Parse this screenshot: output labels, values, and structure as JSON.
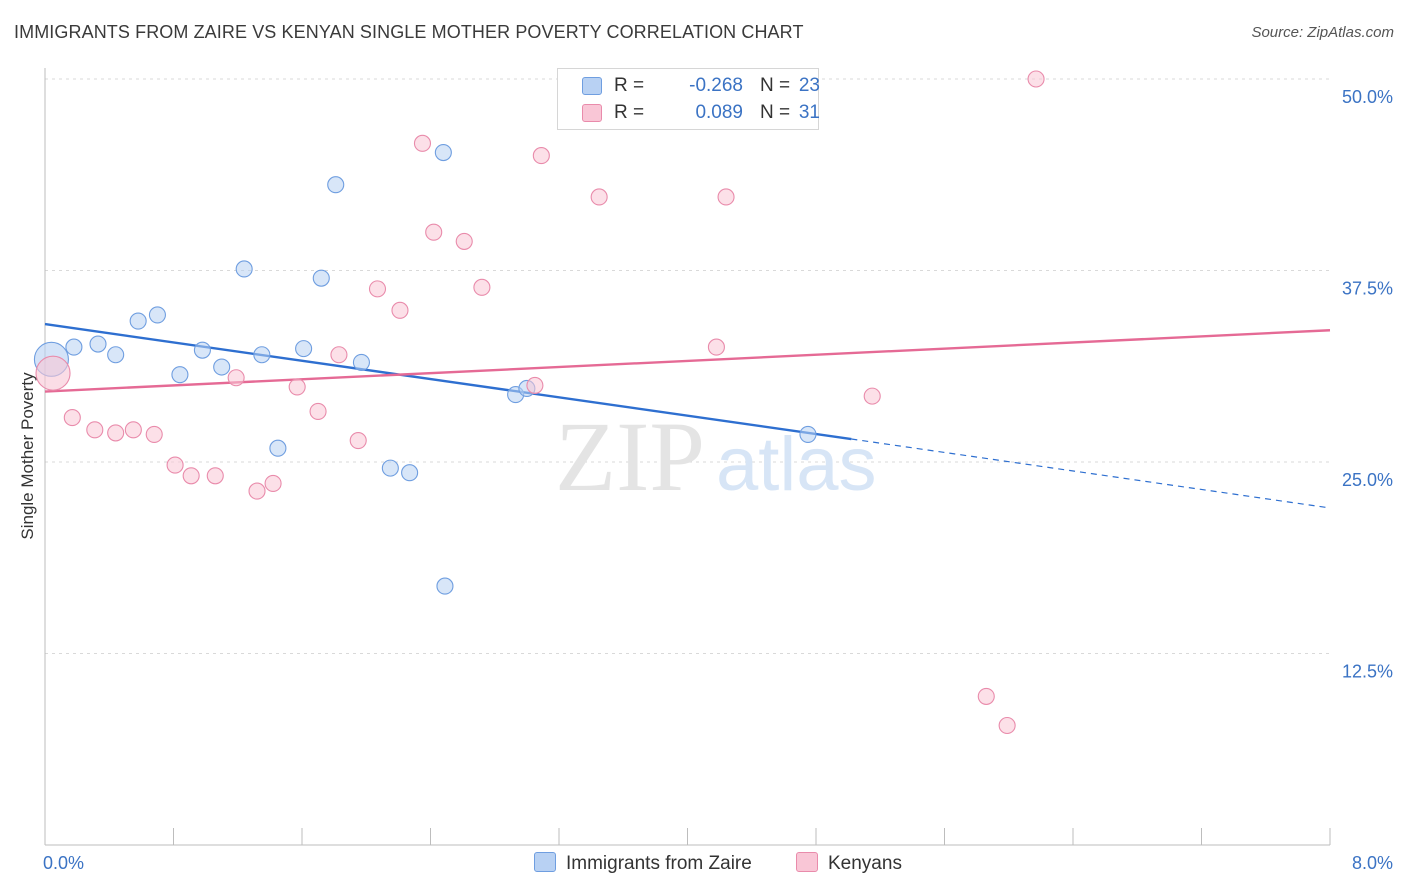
{
  "title": "IMMIGRANTS FROM ZAIRE VS KENYAN SINGLE MOTHER POVERTY CORRELATION CHART",
  "source": "Source: ZipAtlas.com",
  "watermark": {
    "zip": "ZIP",
    "atlas": "atlas"
  },
  "legend": {
    "r_label": "R =",
    "n_label": "N =",
    "rows": [
      {
        "r": "-0.268",
        "n": "23",
        "fill": "#b8d1f3",
        "stroke": "#6f9ee0"
      },
      {
        "r": "0.089",
        "n": "31",
        "fill": "#f9c6d6",
        "stroke": "#e98bab"
      }
    ]
  },
  "bottom_legend": [
    {
      "label": "Immigrants from Zaire",
      "fill": "#b8d1f3",
      "stroke": "#6f9ee0"
    },
    {
      "label": "Kenyans",
      "fill": "#f9c6d6",
      "stroke": "#e98bab"
    }
  ],
  "chart_data": {
    "type": "scatter",
    "xlabel": "",
    "ylabel": "Single Mother Poverty",
    "xlim": [
      0,
      8
    ],
    "ylim": [
      0,
      52
    ],
    "x_tick_labels": [
      {
        "value": 0,
        "label": "0.0%"
      },
      {
        "value": 8,
        "label": "8.0%"
      }
    ],
    "y_tick_labels": [
      {
        "value": 12.5,
        "label": "12.5%"
      },
      {
        "value": 25,
        "label": "25.0%"
      },
      {
        "value": 37.5,
        "label": "37.5%"
      },
      {
        "value": 50,
        "label": "50.0%"
      }
    ],
    "x_minor_ticks": [
      0,
      0.8,
      1.6,
      2.4,
      3.2,
      4.0,
      4.8,
      5.6,
      6.4,
      7.2,
      8.0
    ],
    "gridlines": [
      12.5,
      25,
      37.5,
      50
    ],
    "series": [
      {
        "name": "Immigrants from Zaire",
        "color": "#6f9ee0",
        "fill": "#b8d1f3",
        "trend_color": "#2e6fd0",
        "trend": {
          "x0": 0,
          "y0": 34.0,
          "x1": 5.02,
          "y1": 26.5,
          "dash_x1": 8.0,
          "dash_y1": 22.0
        },
        "points": [
          {
            "x": 0.04,
            "y": 31.7,
            "big": true
          },
          {
            "x": 0.18,
            "y": 32.5
          },
          {
            "x": 0.33,
            "y": 32.7
          },
          {
            "x": 0.44,
            "y": 32.0
          },
          {
            "x": 0.58,
            "y": 34.2
          },
          {
            "x": 0.7,
            "y": 34.6
          },
          {
            "x": 0.84,
            "y": 30.7
          },
          {
            "x": 0.98,
            "y": 32.3
          },
          {
            "x": 1.1,
            "y": 31.2
          },
          {
            "x": 1.24,
            "y": 37.6
          },
          {
            "x": 1.35,
            "y": 32.0
          },
          {
            "x": 1.45,
            "y": 25.9
          },
          {
            "x": 1.61,
            "y": 32.4
          },
          {
            "x": 1.72,
            "y": 37.0
          },
          {
            "x": 1.81,
            "y": 43.1
          },
          {
            "x": 1.97,
            "y": 31.5
          },
          {
            "x": 2.15,
            "y": 24.6
          },
          {
            "x": 2.27,
            "y": 24.3
          },
          {
            "x": 2.48,
            "y": 45.2
          },
          {
            "x": 2.49,
            "y": 16.9
          },
          {
            "x": 2.93,
            "y": 29.4
          },
          {
            "x": 3.0,
            "y": 29.8
          },
          {
            "x": 4.75,
            "y": 26.8
          }
        ]
      },
      {
        "name": "Kenyans",
        "color": "#e98bab",
        "fill": "#f9c6d6",
        "trend_color": "#e56a95",
        "trend": {
          "x0": 0,
          "y0": 29.6,
          "x1": 8.0,
          "y1": 33.6
        },
        "points": [
          {
            "x": 0.05,
            "y": 30.8,
            "big": true
          },
          {
            "x": 0.17,
            "y": 27.9
          },
          {
            "x": 0.31,
            "y": 27.1
          },
          {
            "x": 0.44,
            "y": 26.9
          },
          {
            "x": 0.55,
            "y": 27.1
          },
          {
            "x": 0.68,
            "y": 26.8
          },
          {
            "x": 0.81,
            "y": 24.8
          },
          {
            "x": 0.91,
            "y": 24.1
          },
          {
            "x": 1.06,
            "y": 24.1
          },
          {
            "x": 1.19,
            "y": 30.5
          },
          {
            "x": 1.32,
            "y": 23.1
          },
          {
            "x": 1.42,
            "y": 23.6
          },
          {
            "x": 1.57,
            "y": 29.9
          },
          {
            "x": 1.7,
            "y": 28.3
          },
          {
            "x": 1.83,
            "y": 32.0
          },
          {
            "x": 1.95,
            "y": 26.4
          },
          {
            "x": 2.07,
            "y": 36.3
          },
          {
            "x": 2.21,
            "y": 34.9
          },
          {
            "x": 2.35,
            "y": 45.8
          },
          {
            "x": 2.42,
            "y": 40.0
          },
          {
            "x": 2.61,
            "y": 39.4
          },
          {
            "x": 2.72,
            "y": 36.4
          },
          {
            "x": 3.05,
            "y": 30.0
          },
          {
            "x": 3.09,
            "y": 45.0
          },
          {
            "x": 3.45,
            "y": 42.3
          },
          {
            "x": 4.18,
            "y": 32.5
          },
          {
            "x": 4.24,
            "y": 42.3
          },
          {
            "x": 5.15,
            "y": 29.3
          },
          {
            "x": 5.86,
            "y": 9.7
          },
          {
            "x": 5.99,
            "y": 7.8
          },
          {
            "x": 6.17,
            "y": 50.0
          }
        ]
      }
    ]
  }
}
